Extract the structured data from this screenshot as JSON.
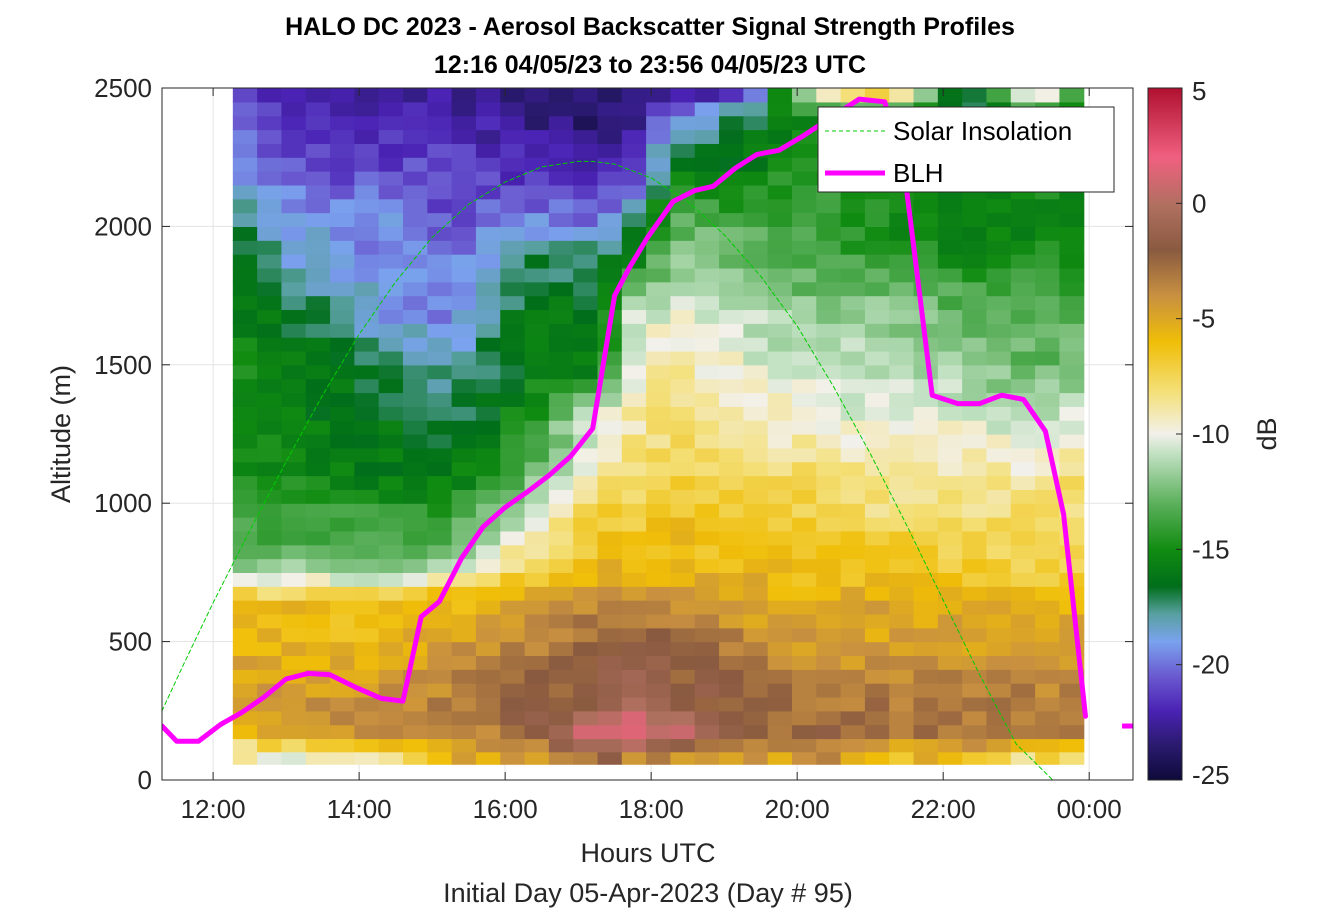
{
  "chart_data": {
    "type": "heatmap",
    "title": "HALO DC 2023 - Aerosol Backscatter Signal Strength Profiles",
    "subtitle": "12:16 04/05/23 to 23:56 04/05/23  UTC",
    "xlabel": "Hours UTC",
    "xlabel2": "Initial Day 05-Apr-2023 (Day # 95)",
    "ylabel": "Altitude (m)",
    "colorbar_label": "dB",
    "xlim": [
      11.3,
      24.6
    ],
    "ylim": [
      0,
      2500
    ],
    "clim": [
      -25,
      5
    ],
    "x_ticks": [
      {
        "value": 12,
        "label": "12:00"
      },
      {
        "value": 14,
        "label": "14:00"
      },
      {
        "value": 16,
        "label": "16:00"
      },
      {
        "value": 18,
        "label": "18:00"
      },
      {
        "value": 20,
        "label": "20:00"
      },
      {
        "value": 22,
        "label": "22:00"
      },
      {
        "value": 24,
        "label": "00:00"
      }
    ],
    "y_ticks": [
      {
        "value": 0,
        "label": "0"
      },
      {
        "value": 500,
        "label": "500"
      },
      {
        "value": 1000,
        "label": "1000"
      },
      {
        "value": 1500,
        "label": "1500"
      },
      {
        "value": 2000,
        "label": "2000"
      },
      {
        "value": 2500,
        "label": "2500"
      }
    ],
    "colorbar_ticks": [
      {
        "value": 5,
        "label": "5"
      },
      {
        "value": 0,
        "label": "0"
      },
      {
        "value": -5,
        "label": "-5"
      },
      {
        "value": -10,
        "label": "-10"
      },
      {
        "value": -15,
        "label": "-15"
      },
      {
        "value": -20,
        "label": "-20"
      },
      {
        "value": -25,
        "label": "-25"
      }
    ],
    "grid": true,
    "legend_position": "top-right",
    "heatmap": {
      "x_start": 12.27,
      "x_end": 23.93,
      "x_step": 0.333,
      "y_start": 100,
      "y_end": 2500,
      "y_step": 50,
      "grid_hours": [
        12.27,
        13.27,
        14.27,
        15.27,
        16.27,
        17.27,
        17.77,
        18.27,
        19.27,
        20.27,
        21.27,
        22.27,
        23.27,
        23.93
      ],
      "grid_heights": [
        100,
        150,
        250,
        400,
        550,
        650,
        700,
        800,
        950,
        1100,
        1300,
        1500,
        1700,
        1800,
        1900,
        2000,
        2200,
        2400,
        2500
      ],
      "grid_db": [
        [
          -10,
          -9,
          -8,
          -6,
          -5,
          -3,
          -3,
          -4,
          -5,
          -4,
          -6,
          -6,
          -8,
          -8
        ],
        [
          -6,
          -5,
          -4,
          -4,
          -3,
          2,
          2,
          1,
          -3,
          -2,
          -3,
          -3,
          -3,
          -3
        ],
        [
          -4,
          -4,
          -4,
          -3,
          -2,
          -1,
          0,
          -1,
          -2,
          -3,
          -3,
          -3,
          -3,
          -3
        ],
        [
          -5,
          -5,
          -5,
          -4,
          -3,
          -2,
          -1,
          -2,
          -3,
          -4,
          -4,
          -4,
          -4,
          -4
        ],
        [
          -6,
          -6,
          -6,
          -5,
          -4,
          -3,
          -3,
          -3,
          -4,
          -5,
          -5,
          -5,
          -5,
          -5
        ],
        [
          -6,
          -6,
          -6,
          -6,
          -5,
          -4,
          -4,
          -4,
          -5,
          -5,
          -5,
          -5,
          -6,
          -6
        ],
        [
          -9,
          -9,
          -10,
          -7,
          -6,
          -5,
          -5,
          -5,
          -5,
          -6,
          -6,
          -6,
          -7,
          -7
        ],
        [
          -13,
          -13,
          -13,
          -12,
          -8,
          -6,
          -6,
          -6,
          -6,
          -6,
          -6,
          -7,
          -7,
          -8
        ],
        [
          -14,
          -14,
          -14,
          -14,
          -11,
          -7,
          -7,
          -6,
          -7,
          -7,
          -8,
          -8,
          -8,
          -8
        ],
        [
          -15,
          -15,
          -16,
          -16,
          -13,
          -9,
          -8,
          -7,
          -8,
          -8,
          -9,
          -9,
          -9,
          -8
        ],
        [
          -15,
          -16,
          -16,
          -17,
          -15,
          -10,
          -9,
          -8,
          -9,
          -10,
          -10,
          -10,
          -11,
          -10
        ],
        [
          -15,
          -16,
          -17,
          -18,
          -16,
          -16,
          -10,
          -9,
          -10,
          -11,
          -11,
          -12,
          -13,
          -12
        ],
        [
          -16,
          -17,
          -19,
          -20,
          -16,
          -16,
          -11,
          -10,
          -11,
          -12,
          -12,
          -13,
          -13,
          -13
        ],
        [
          -16,
          -18,
          -19,
          -20,
          -17,
          -17,
          -13,
          -12,
          -12,
          -13,
          -13,
          -14,
          -14,
          -14
        ],
        [
          -16,
          -19,
          -20,
          -20,
          -17,
          -17,
          -16,
          -12,
          -13,
          -14,
          -14,
          -15,
          -15,
          -15
        ],
        [
          -17,
          -19,
          -19,
          -21,
          -19,
          -20,
          -17,
          -13,
          -13,
          -14,
          -15,
          -16,
          -15,
          -15
        ],
        [
          -19,
          -21,
          -21,
          -21,
          -22,
          -22,
          -21,
          -16,
          -16,
          -14,
          -15,
          -16,
          -15,
          -15
        ],
        [
          -20,
          -22,
          -22,
          -22,
          -23,
          -24,
          -23,
          -20,
          -17,
          -15,
          -15,
          -17,
          -15,
          -14
        ],
        [
          -21,
          -22,
          -23,
          -23,
          -23,
          -24,
          -24,
          -24,
          -22,
          -8,
          -4,
          -19,
          -7,
          -17
        ]
      ]
    },
    "series": [
      {
        "name": "Solar Insolation",
        "style": "dashed",
        "color": "#00cc00",
        "x": [
          11.3,
          11.6,
          12.0,
          12.5,
          13.0,
          13.5,
          14.0,
          14.5,
          15.0,
          15.5,
          16.0,
          16.5,
          17.0,
          17.2,
          17.5,
          18.0,
          18.5,
          19.0,
          19.5,
          20.0,
          20.5,
          21.0,
          21.5,
          22.0,
          22.5,
          23.0,
          23.5,
          23.8,
          24.0,
          24.6
        ],
        "y": [
          250,
          420,
          640,
          900,
          1150,
          1390,
          1610,
          1800,
          1960,
          2080,
          2160,
          2215,
          2235,
          2235,
          2225,
          2175,
          2090,
          1970,
          1820,
          1640,
          1420,
          1180,
          920,
          650,
          380,
          130,
          0,
          0,
          0,
          0
        ]
      },
      {
        "name": "BLH",
        "style": "solid",
        "color": "#ff00ff",
        "x": [
          11.3,
          11.5,
          11.8,
          12.1,
          12.4,
          12.7,
          13.0,
          13.3,
          13.6,
          13.95,
          14.3,
          14.6,
          14.85,
          15.1,
          15.4,
          15.7,
          16.0,
          16.3,
          16.6,
          16.9,
          17.2,
          17.5,
          17.7,
          17.95,
          18.3,
          18.6,
          18.85,
          19.15,
          19.45,
          19.75,
          20.1,
          20.5,
          20.85,
          21.2,
          21.5,
          21.85,
          22.2,
          22.5,
          22.8,
          23.1,
          23.4,
          23.65,
          23.95,
          24.2
        ],
        "y": [
          195,
          140,
          140,
          200,
          245,
          300,
          365,
          385,
          380,
          335,
          295,
          285,
          590,
          645,
          800,
          915,
          985,
          1040,
          1100,
          1170,
          1270,
          1750,
          1850,
          1960,
          2090,
          2130,
          2145,
          2210,
          2260,
          2275,
          2330,
          2400,
          2460,
          2450,
          2130,
          1390,
          1360,
          1360,
          1390,
          1375,
          1260,
          960,
          230,
          null
        ]
      }
    ]
  }
}
